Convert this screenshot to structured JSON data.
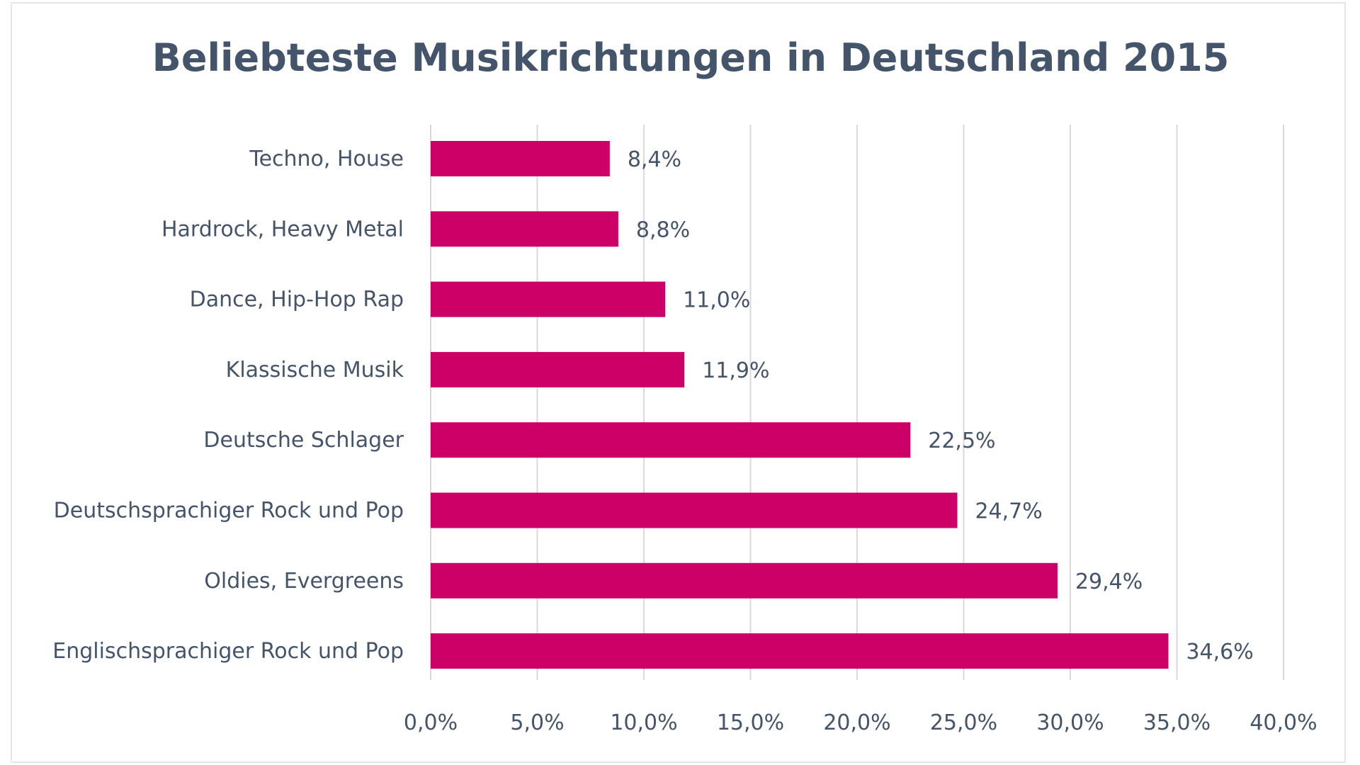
{
  "chart_data": {
    "type": "bar",
    "orientation": "horizontal",
    "title": "Beliebteste Musikrichtungen in Deutschland 2015",
    "categories": [
      "Techno, House",
      "Hardrock, Heavy Metal",
      "Dance, Hip-Hop Rap",
      "Klassische Musik",
      "Deutsche Schlager",
      "Deutschsprachiger Rock und Pop",
      "Oldies, Evergreens",
      "Englischsprachiger Rock und Pop"
    ],
    "values": [
      8.4,
      8.8,
      11.0,
      11.9,
      22.5,
      24.7,
      29.4,
      34.6
    ],
    "value_labels": [
      "8,4%",
      "8,8%",
      "11,0%",
      "11,9%",
      "22,5%",
      "24,7%",
      "29,4%",
      "34,6%"
    ],
    "xlim": [
      0,
      40
    ],
    "xticks": [
      0,
      5,
      10,
      15,
      20,
      25,
      30,
      35,
      40
    ],
    "xtick_labels": [
      "0,0%",
      "5,0%",
      "10,0%",
      "15,0%",
      "20,0%",
      "25,0%",
      "30,0%",
      "35,0%",
      "40,0%"
    ],
    "xlabel": "",
    "ylabel": "",
    "grid": true,
    "bar_color": "#cc0066"
  }
}
